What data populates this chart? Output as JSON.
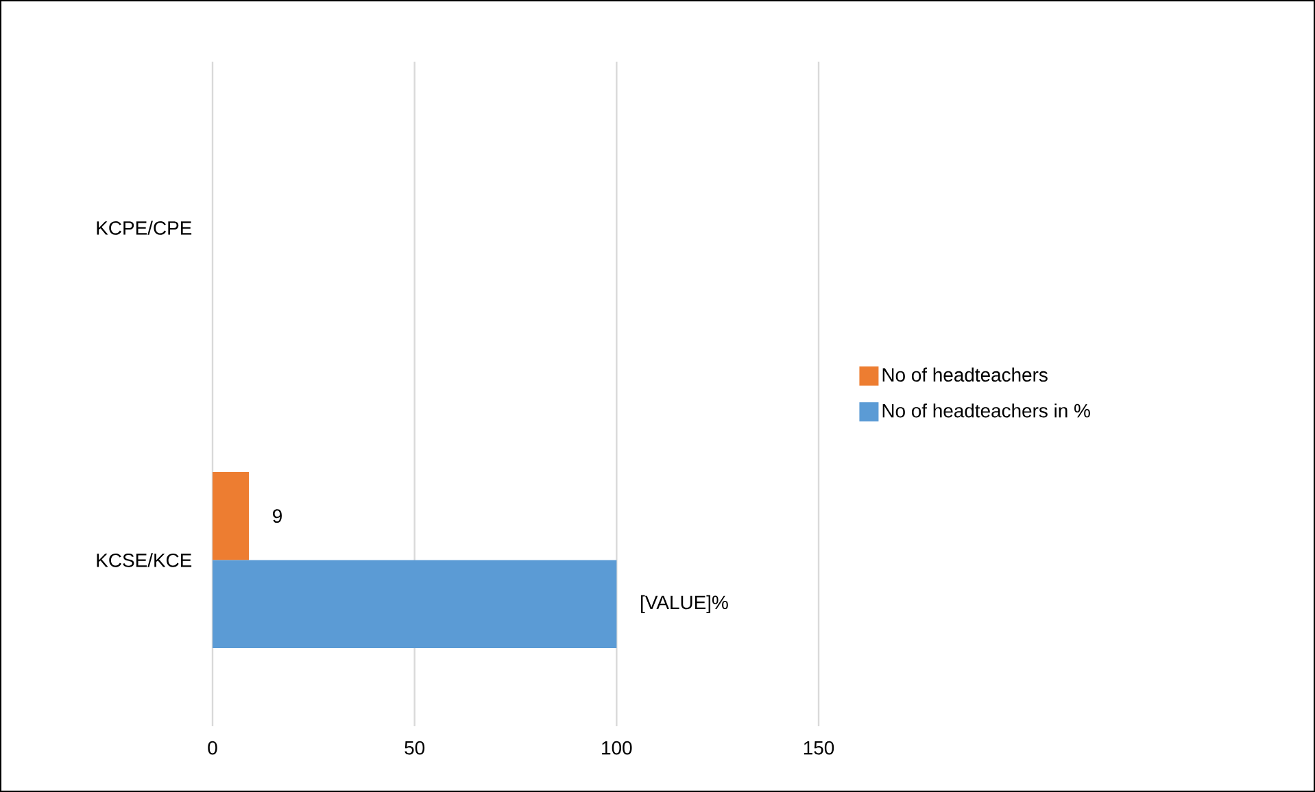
{
  "chart_data": {
    "type": "bar",
    "orientation": "horizontal",
    "categories": [
      "KCPE/CPE",
      "KCSE/KCE"
    ],
    "series": [
      {
        "name": "No of headteachers",
        "color": "#ed7d31",
        "values": [
          null,
          9
        ],
        "value_labels": [
          null,
          "9"
        ]
      },
      {
        "name": "No of headteachers in %",
        "color": "#5b9bd5",
        "values": [
          null,
          100
        ],
        "value_labels": [
          null,
          "[VALUE]%"
        ]
      }
    ],
    "xlim": [
      0,
      150
    ],
    "xticks": [
      0,
      50,
      100,
      150
    ],
    "grid": "x",
    "legend": "right"
  }
}
